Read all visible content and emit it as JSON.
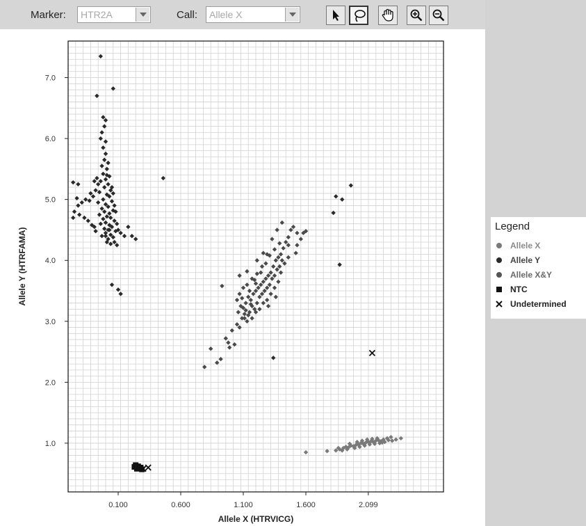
{
  "toolbar": {
    "marker_label": "Marker:",
    "marker_value": "HTR2A",
    "call_label": "Call:",
    "call_value": "Allele X",
    "tools": [
      {
        "name": "select-tool",
        "icon": "arrow-pointer-icon"
      },
      {
        "name": "lasso-tool",
        "icon": "lasso-icon"
      },
      {
        "name": "pan-tool",
        "icon": "hand-icon"
      },
      {
        "name": "zoom-in-tool",
        "icon": "zoom-in-icon"
      },
      {
        "name": "zoom-out-tool",
        "icon": "zoom-out-icon"
      }
    ]
  },
  "legend": {
    "title": "Legend",
    "items": [
      {
        "label": "Allele X",
        "marker": "circle",
        "color": "#7a7a7a",
        "text_color": "#8a8a8a"
      },
      {
        "label": "Allele Y",
        "marker": "circle",
        "color": "#2a2a2a",
        "text_color": "#444444"
      },
      {
        "label": "Allele X&Y",
        "marker": "circle",
        "color": "#555555",
        "text_color": "#6a6a6a"
      },
      {
        "label": "NTC",
        "marker": "square",
        "color": "#111111",
        "text_color": "#222222"
      },
      {
        "label": "Undetermined",
        "marker": "x",
        "color": "#111111",
        "text_color": "#222222"
      }
    ]
  },
  "chart_data": {
    "type": "scatter",
    "title": "",
    "xlabel": "Allele X (HTRVICG)",
    "ylabel": "Allele Y (HTRFAMA)",
    "xlim": [
      -0.3,
      2.7
    ],
    "ylim": [
      0.2,
      7.6
    ],
    "x_tick_values": [
      0.1,
      0.6,
      1.1,
      1.6,
      2.099
    ],
    "x_tick_labels": [
      "0.100",
      "0.600",
      "1.100",
      "1.600",
      "2.099"
    ],
    "y_tick_values": [
      1.0,
      2.0,
      3.0,
      4.0,
      5.0,
      6.0,
      7.0
    ],
    "y_tick_labels": [
      "1.0",
      "2.0",
      "3.0",
      "4.0",
      "5.0",
      "6.0",
      "7.0"
    ],
    "grid": true,
    "legend_position": "right",
    "series": [
      {
        "name": "Allele Y",
        "marker": "diamond",
        "color": "#2a2a2a",
        "points": [
          [
            -0.04,
            7.35
          ],
          [
            -0.07,
            6.7
          ],
          [
            0.06,
            6.82
          ],
          [
            -0.02,
            6.35
          ],
          [
            0.0,
            6.3
          ],
          [
            -0.01,
            6.2
          ],
          [
            -0.03,
            6.1
          ],
          [
            -0.04,
            6.0
          ],
          [
            0.0,
            5.95
          ],
          [
            -0.02,
            5.85
          ],
          [
            0.0,
            5.75
          ],
          [
            -0.01,
            5.65
          ],
          [
            0.02,
            5.6
          ],
          [
            -0.03,
            5.55
          ],
          [
            0.01,
            5.5
          ],
          [
            -0.02,
            5.42
          ],
          [
            0.03,
            5.38
          ],
          [
            0.0,
            5.33
          ],
          [
            -0.04,
            5.3
          ],
          [
            0.02,
            5.25
          ],
          [
            -0.01,
            5.2
          ],
          [
            0.04,
            5.15
          ],
          [
            -0.05,
            5.12
          ],
          [
            0.01,
            5.08
          ],
          [
            0.03,
            5.05
          ],
          [
            -0.02,
            5.0
          ],
          [
            0.05,
            4.97
          ],
          [
            -0.06,
            4.95
          ],
          [
            0.0,
            4.92
          ],
          [
            0.02,
            4.88
          ],
          [
            -0.03,
            4.85
          ],
          [
            0.06,
            4.82
          ],
          [
            -0.01,
            4.8
          ],
          [
            0.03,
            4.77
          ],
          [
            -0.05,
            4.75
          ],
          [
            0.01,
            4.72
          ],
          [
            0.04,
            4.7
          ],
          [
            -0.02,
            4.68
          ],
          [
            0.07,
            4.65
          ],
          [
            0.0,
            4.62
          ],
          [
            -0.04,
            4.6
          ],
          [
            0.03,
            4.58
          ],
          [
            0.05,
            4.55
          ],
          [
            -0.01,
            4.52
          ],
          [
            0.02,
            4.5
          ],
          [
            0.08,
            4.48
          ],
          [
            0.0,
            4.45
          ],
          [
            0.04,
            4.42
          ],
          [
            0.06,
            4.38
          ],
          [
            0.02,
            4.35
          ],
          [
            0.07,
            4.3
          ],
          [
            0.04,
            4.27
          ],
          [
            0.09,
            4.25
          ],
          [
            0.03,
            4.5
          ],
          [
            0.1,
            4.5
          ],
          [
            0.09,
            4.6
          ],
          [
            0.12,
            4.45
          ],
          [
            0.15,
            4.4
          ],
          [
            0.18,
            4.55
          ],
          [
            0.21,
            4.4
          ],
          [
            0.24,
            4.35
          ],
          [
            -0.06,
            5.25
          ],
          [
            -0.08,
            5.15
          ],
          [
            -0.1,
            5.05
          ],
          [
            -0.13,
            4.98
          ],
          [
            -0.16,
            5.0
          ],
          [
            -0.19,
            4.95
          ],
          [
            -0.22,
            4.9
          ],
          [
            -0.25,
            4.8
          ],
          [
            -0.26,
            4.7
          ],
          [
            -0.21,
            4.75
          ],
          [
            -0.17,
            4.7
          ],
          [
            -0.14,
            4.65
          ],
          [
            -0.11,
            4.58
          ],
          [
            -0.09,
            4.55
          ],
          [
            -0.08,
            4.48
          ],
          [
            -0.23,
            5.02
          ],
          [
            -0.26,
            5.28
          ],
          [
            -0.22,
            5.25
          ],
          [
            -0.12,
            5.1
          ],
          [
            -0.09,
            5.3
          ],
          [
            -0.07,
            5.35
          ],
          [
            0.01,
            5.4
          ],
          [
            0.05,
            5.2
          ],
          [
            0.06,
            5.1
          ],
          [
            0.07,
            4.9
          ],
          [
            0.08,
            4.8
          ],
          [
            -0.03,
            4.4
          ],
          [
            0.0,
            4.4
          ],
          [
            0.01,
            4.3
          ],
          [
            0.05,
            3.6
          ],
          [
            0.1,
            3.52
          ],
          [
            0.12,
            3.45
          ],
          [
            0.46,
            5.35
          ],
          [
            1.84,
            5.05
          ],
          [
            1.89,
            5.0
          ],
          [
            1.96,
            5.23
          ],
          [
            1.82,
            4.78
          ],
          [
            1.87,
            3.93
          ],
          [
            1.34,
            2.4
          ]
        ]
      },
      {
        "name": "Allele X&Y",
        "marker": "diamond",
        "color": "#4a4a4a",
        "points": [
          [
            0.79,
            2.25
          ],
          [
            0.84,
            2.55
          ],
          [
            0.89,
            2.32
          ],
          [
            0.92,
            2.38
          ],
          [
            0.96,
            2.72
          ],
          [
            0.99,
            2.57
          ],
          [
            1.01,
            2.85
          ],
          [
            1.03,
            2.62
          ],
          [
            1.05,
            2.95
          ],
          [
            1.07,
            2.9
          ],
          [
            1.09,
            3.05
          ],
          [
            1.1,
            3.22
          ],
          [
            1.11,
            3.12
          ],
          [
            1.12,
            3.3
          ],
          [
            1.13,
            3.0
          ],
          [
            1.14,
            3.4
          ],
          [
            1.15,
            3.15
          ],
          [
            1.16,
            3.35
          ],
          [
            1.17,
            3.25
          ],
          [
            1.18,
            3.45
          ],
          [
            1.19,
            3.2
          ],
          [
            1.2,
            3.5
          ],
          [
            1.21,
            3.3
          ],
          [
            1.22,
            3.55
          ],
          [
            1.23,
            3.4
          ],
          [
            1.24,
            3.6
          ],
          [
            1.25,
            3.45
          ],
          [
            1.26,
            3.65
          ],
          [
            1.27,
            3.5
          ],
          [
            1.28,
            3.7
          ],
          [
            1.29,
            3.55
          ],
          [
            1.3,
            3.75
          ],
          [
            1.31,
            3.6
          ],
          [
            1.32,
            3.8
          ],
          [
            1.33,
            3.7
          ],
          [
            1.34,
            3.9
          ],
          [
            1.35,
            3.75
          ],
          [
            1.36,
            4.0
          ],
          [
            1.37,
            3.85
          ],
          [
            1.38,
            4.05
          ],
          [
            1.39,
            3.9
          ],
          [
            1.4,
            4.1
          ],
          [
            1.41,
            4.0
          ],
          [
            1.42,
            4.2
          ],
          [
            1.44,
            4.3
          ],
          [
            1.46,
            4.38
          ],
          [
            1.48,
            4.5
          ],
          [
            1.5,
            4.55
          ],
          [
            1.53,
            4.25
          ],
          [
            1.56,
            4.35
          ],
          [
            1.58,
            4.45
          ],
          [
            1.41,
            4.62
          ],
          [
            1.37,
            4.5
          ],
          [
            1.33,
            4.35
          ],
          [
            1.29,
            4.1
          ],
          [
            1.25,
            3.9
          ],
          [
            1.21,
            3.78
          ],
          [
            1.17,
            3.7
          ],
          [
            1.13,
            3.6
          ],
          [
            1.1,
            3.55
          ],
          [
            1.07,
            3.45
          ],
          [
            1.05,
            3.35
          ],
          [
            1.08,
            3.25
          ],
          [
            1.11,
            3.05
          ],
          [
            1.14,
            3.1
          ],
          [
            1.17,
            3.05
          ],
          [
            1.2,
            3.15
          ],
          [
            1.23,
            3.2
          ],
          [
            1.26,
            3.3
          ],
          [
            1.29,
            3.35
          ],
          [
            1.32,
            3.45
          ],
          [
            1.35,
            3.55
          ],
          [
            1.38,
            3.65
          ],
          [
            1.4,
            3.8
          ],
          [
            1.43,
            3.95
          ],
          [
            1.46,
            4.05
          ],
          [
            1.19,
            3.68
          ],
          [
            1.24,
            3.8
          ],
          [
            1.28,
            3.95
          ],
          [
            1.31,
            4.08
          ],
          [
            1.35,
            4.18
          ],
          [
            1.39,
            4.28
          ],
          [
            1.06,
            3.15
          ],
          [
            1.09,
            3.38
          ],
          [
            1.15,
            3.5
          ],
          [
            1.2,
            3.62
          ],
          [
            1.12,
            3.18
          ],
          [
            1.16,
            3.28
          ],
          [
            0.98,
            2.65
          ],
          [
            1.07,
            3.75
          ],
          [
            1.13,
            3.82
          ],
          [
            1.21,
            4.0
          ],
          [
            1.26,
            4.12
          ],
          [
            1.52,
            4.12
          ],
          [
            0.93,
            3.58
          ],
          [
            1.53,
            4.45
          ],
          [
            1.6,
            4.48
          ],
          [
            1.46,
            4.25
          ],
          [
            1.3,
            3.25
          ],
          [
            1.36,
            3.4
          ]
        ]
      },
      {
        "name": "Allele X",
        "marker": "diamond",
        "color": "#7a7a7a",
        "points": [
          [
            1.6,
            0.85
          ],
          [
            1.77,
            0.87
          ],
          [
            1.84,
            0.88
          ],
          [
            1.87,
            0.9
          ],
          [
            1.9,
            0.92
          ],
          [
            1.92,
            0.94
          ],
          [
            1.94,
            0.93
          ],
          [
            1.96,
            0.96
          ],
          [
            1.98,
            0.95
          ],
          [
            2.0,
            0.97
          ],
          [
            2.02,
            0.98
          ],
          [
            2.04,
            1.0
          ],
          [
            2.06,
            0.99
          ],
          [
            2.08,
            1.01
          ],
          [
            2.1,
            1.02
          ],
          [
            2.12,
            1.03
          ],
          [
            2.14,
            1.02
          ],
          [
            2.16,
            1.04
          ],
          [
            2.18,
            1.05
          ],
          [
            2.2,
            1.03
          ],
          [
            2.22,
            1.06
          ],
          [
            2.25,
            1.08
          ],
          [
            2.28,
            1.1
          ],
          [
            2.32,
            1.06
          ],
          [
            2.36,
            1.08
          ],
          [
            1.86,
            0.92
          ],
          [
            1.89,
            0.88
          ],
          [
            1.93,
            0.9
          ],
          [
            1.95,
            0.99
          ],
          [
            1.99,
            0.92
          ],
          [
            2.01,
            1.02
          ],
          [
            2.03,
            0.94
          ],
          [
            2.05,
            1.04
          ],
          [
            2.07,
            0.96
          ],
          [
            2.09,
            1.06
          ],
          [
            2.11,
            0.98
          ],
          [
            2.13,
            1.07
          ],
          [
            2.15,
            0.99
          ],
          [
            2.17,
            1.08
          ],
          [
            2.19,
            1.0
          ],
          [
            2.21,
            1.01
          ],
          [
            2.23,
            1.02
          ],
          [
            2.26,
            1.05
          ],
          [
            2.29,
            1.04
          ]
        ]
      },
      {
        "name": "NTC",
        "marker": "square",
        "color": "#111111",
        "points": [
          [
            0.24,
            0.64
          ],
          [
            0.26,
            0.62
          ],
          [
            0.28,
            0.6
          ],
          [
            0.25,
            0.58
          ],
          [
            0.29,
            0.57
          ],
          [
            0.23,
            0.61
          ]
        ]
      },
      {
        "name": "Undetermined",
        "marker": "x",
        "color": "#111111",
        "points": [
          [
            0.3,
            0.58
          ],
          [
            0.34,
            0.6
          ],
          [
            2.13,
            2.48
          ]
        ]
      }
    ]
  }
}
